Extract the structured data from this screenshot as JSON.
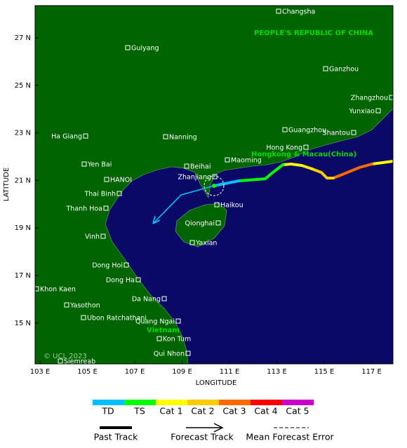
{
  "map": {
    "axes": {
      "x_title": "LONGITUDE",
      "y_title": "LATITUDE",
      "x_ticks": [
        "103 E",
        "105 E",
        "107 E",
        "109 E",
        "111 E",
        "113 E",
        "115 E",
        "117 E"
      ],
      "y_ticks": [
        "27 N",
        "25 N",
        "23 N",
        "21 N",
        "19 N",
        "17 N",
        "15 N"
      ]
    },
    "regions": [
      "PEOPLE'S REPUBLIC OF CHINA",
      "Hongkong & Macau(China)",
      "Vietnam"
    ],
    "cities": [
      "Changsha",
      "Guiyang",
      "Ganzhou",
      "Zhangzhou",
      "Yunxiao",
      "Guangzhou",
      "Shantou",
      "Ha Giang",
      "Nanning",
      "Hong Kong",
      "Beihai",
      "Maoming",
      "Yen Bai",
      "Zhanjiang",
      "HANOI",
      "Thai Binh",
      "Haikou",
      "Thanh Hoa",
      "Qionghai",
      "Vinh",
      "Yaxian",
      "Dong Hoi",
      "Dong Ha",
      "Khon Kaen",
      "Da Nang",
      "Yasothon",
      "Ubon Ratchathani",
      "Quang Ngai",
      "Kon Tum",
      "Qui Nhon",
      "Siemreab"
    ],
    "copyright": "© UCL 2023"
  },
  "legend": {
    "intensity": [
      "TD",
      "TS",
      "Cat 1",
      "Cat 2",
      "Cat 3",
      "Cat 4",
      "Cat 5"
    ],
    "lines": [
      "Past Track",
      "Forecast Track",
      "Mean Forecast Error"
    ]
  }
}
